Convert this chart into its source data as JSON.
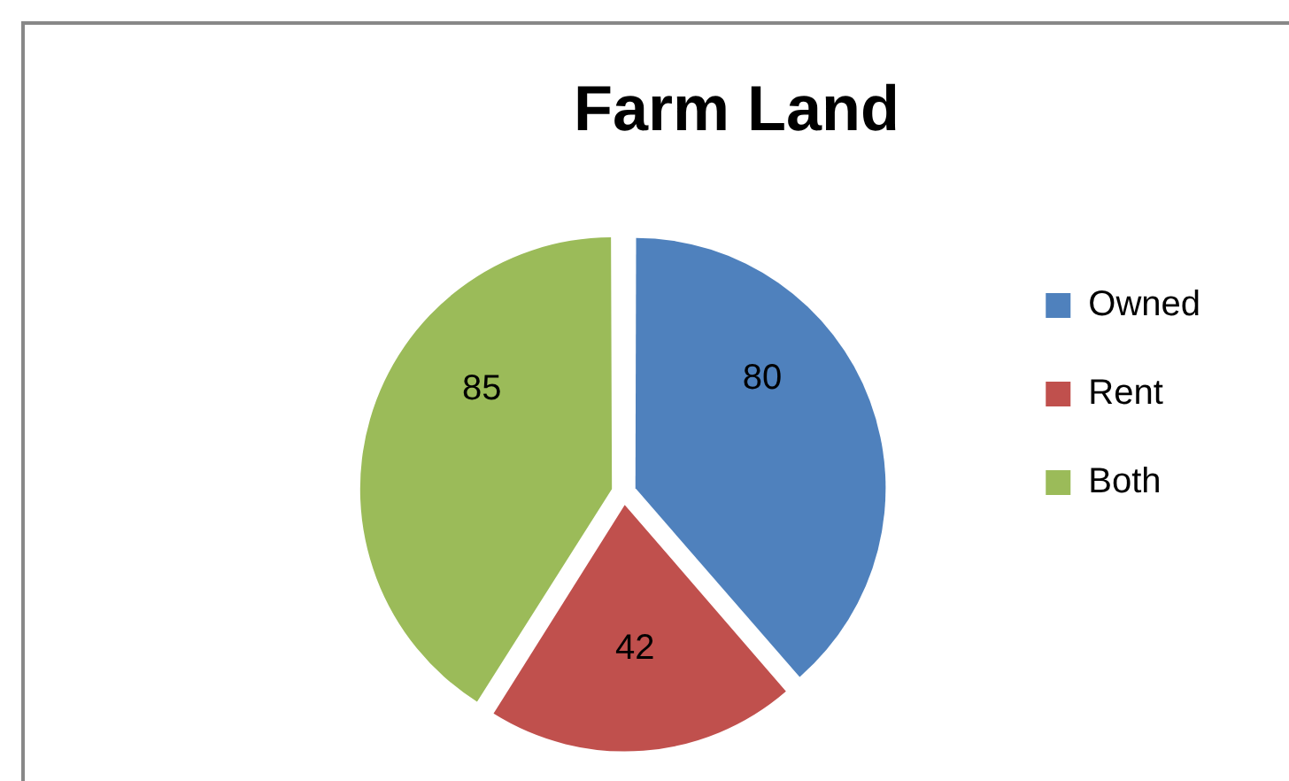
{
  "chart_data": {
    "type": "pie",
    "title": "Farm Land",
    "categories": [
      "Owned",
      "Rent",
      "Both"
    ],
    "values": [
      80,
      42,
      85
    ],
    "colors": [
      "#4f81bd",
      "#c0504d",
      "#9bbb59"
    ],
    "legend": "right",
    "data_labels": true
  }
}
